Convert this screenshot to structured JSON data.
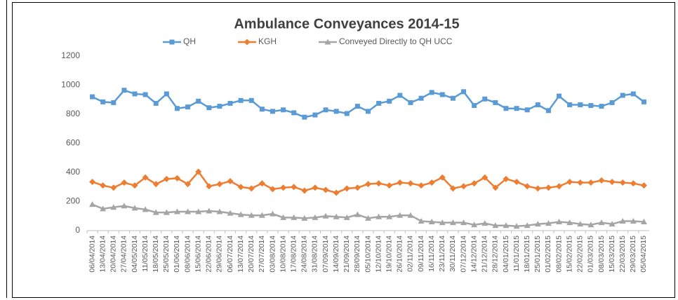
{
  "chart_data": {
    "type": "line",
    "title": "Ambulance Conveyances 2014-15",
    "categories": [
      "06/04/2014",
      "13/04/2014",
      "20/04/2014",
      "27/04/2014",
      "04/05/2014",
      "11/05/2014",
      "18/05/2014",
      "25/05/2014",
      "01/06/2014",
      "08/06/2014",
      "15/06/2014",
      "22/06/2014",
      "29/06/2014",
      "06/07/2014",
      "13/07/2014",
      "20/07/2014",
      "27/07/2014",
      "03/08/2014",
      "10/08/2014",
      "17/08/2014",
      "24/08/2014",
      "31/08/2014",
      "07/09/2014",
      "14/09/2014",
      "21/09/2014",
      "28/09/2014",
      "05/10/2014",
      "12/10/2014",
      "19/10/2014",
      "26/10/2014",
      "02/11/2014",
      "09/11/2014",
      "16/11/2014",
      "23/11/2014",
      "30/11/2014",
      "07/12/2014",
      "14/12/2014",
      "21/12/2014",
      "28/12/2014",
      "04/01/2015",
      "11/01/2015",
      "18/01/2015",
      "25/01/2015",
      "01/02/2015",
      "08/02/2015",
      "15/02/2015",
      "22/02/2015",
      "01/03/2015",
      "08/03/2015",
      "15/03/2015",
      "22/03/2015",
      "29/03/2015",
      "05/04/2015"
    ],
    "series": [
      {
        "name": "QH",
        "color": "#5b9bd5",
        "marker": "square",
        "values": [
          920,
          885,
          880,
          965,
          940,
          935,
          875,
          940,
          840,
          850,
          890,
          845,
          855,
          875,
          895,
          895,
          835,
          820,
          830,
          810,
          780,
          795,
          830,
          820,
          805,
          855,
          820,
          875,
          890,
          930,
          880,
          910,
          950,
          935,
          910,
          955,
          860,
          905,
          880,
          840,
          840,
          830,
          865,
          825,
          925,
          865,
          865,
          860,
          855,
          880,
          930,
          940,
          885
        ]
      },
      {
        "name": "KGH",
        "color": "#ed7d31",
        "marker": "diamond",
        "values": [
          335,
          310,
          295,
          330,
          310,
          365,
          320,
          355,
          360,
          320,
          405,
          305,
          320,
          340,
          300,
          290,
          325,
          285,
          295,
          300,
          275,
          295,
          280,
          260,
          290,
          295,
          320,
          325,
          310,
          330,
          325,
          310,
          330,
          365,
          290,
          305,
          325,
          365,
          295,
          355,
          335,
          305,
          290,
          295,
          305,
          335,
          330,
          330,
          345,
          335,
          330,
          325,
          310
        ]
      },
      {
        "name": "Conveyed Directly to QH UCC",
        "color": "#a5a5a5",
        "marker": "triangle",
        "values": [
          180,
          150,
          160,
          170,
          155,
          145,
          125,
          125,
          130,
          130,
          130,
          135,
          130,
          120,
          110,
          105,
          105,
          115,
          90,
          90,
          85,
          90,
          100,
          95,
          90,
          110,
          85,
          95,
          95,
          105,
          105,
          65,
          60,
          55,
          55,
          55,
          40,
          50,
          35,
          35,
          30,
          35,
          45,
          50,
          60,
          55,
          45,
          40,
          55,
          45,
          65,
          65,
          60
        ]
      }
    ],
    "ylim": [
      0,
      1200
    ],
    "yticks": [
      0,
      200,
      400,
      600,
      800,
      1000,
      1200
    ],
    "grid": false,
    "legend": "top"
  }
}
